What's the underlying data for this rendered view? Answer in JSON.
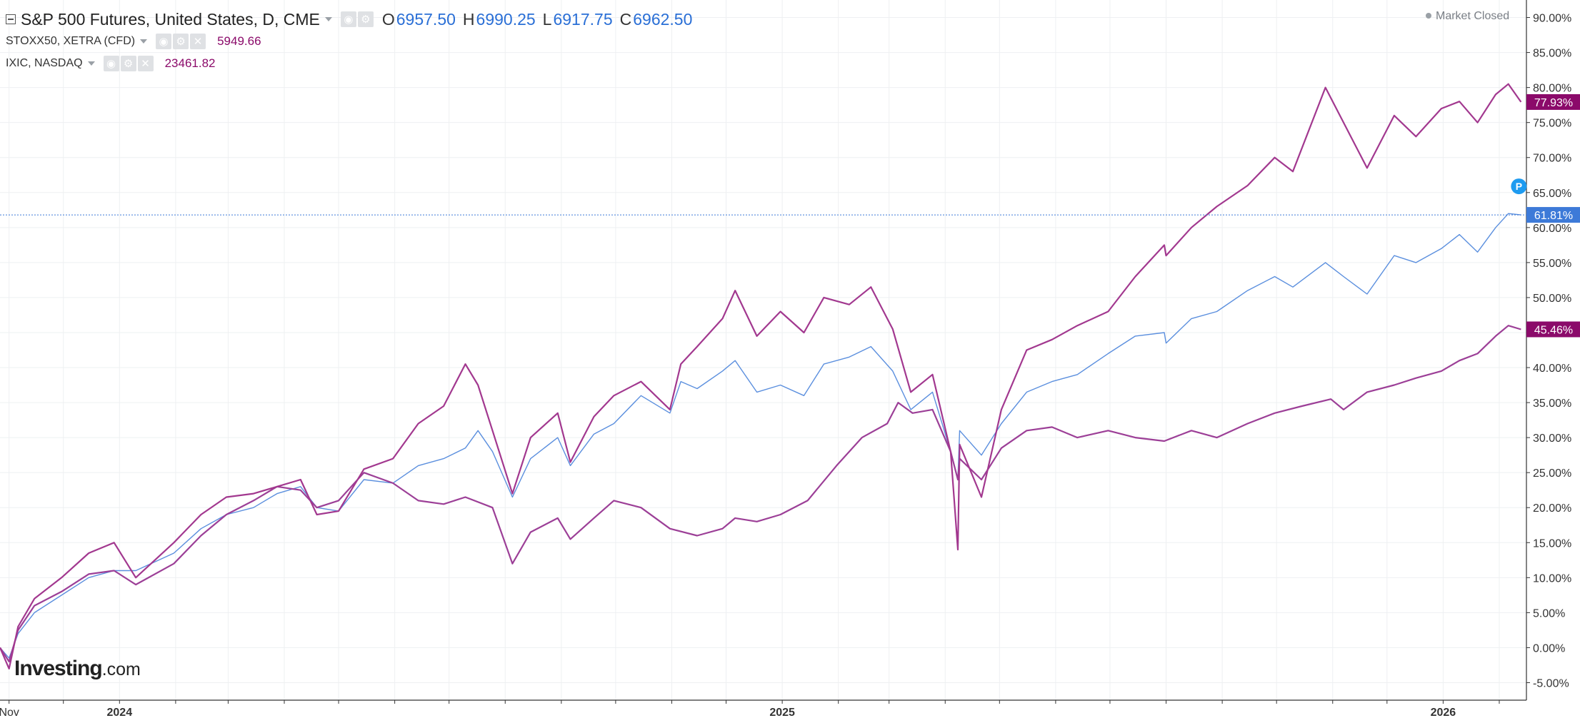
{
  "header": {
    "main_symbol": "S&P 500 Futures, United States, D, CME",
    "open_label": "O",
    "open_value": "6957.50",
    "high_label": "H",
    "high_value": "6990.25",
    "low_label": "L",
    "low_value": "6917.75",
    "close_label": "C",
    "close_value": "6962.50",
    "series2_symbol": "STOXX50, XETRA (CFD)",
    "series2_price": "5949.66",
    "series3_symbol": "IXIC, NASDAQ",
    "series3_price": "23461.82",
    "market_status": "Market Closed"
  },
  "watermark": {
    "brand": "Investing",
    "suffix": ".com"
  },
  "colors": {
    "spx": "#5b8fde",
    "stoxx": "#9c3f97",
    "ixic": "#a2388f",
    "tag_spx": "#3d7ad8",
    "tag_purple": "#8b0a6a",
    "grid": "#eef0f2",
    "axis": "#333333"
  },
  "chart_data": {
    "type": "line",
    "y_unit": "%",
    "ylim": [
      -7.5,
      92.5
    ],
    "y_ticks": [
      "90.00%",
      "85.00%",
      "80.00%",
      "75.00%",
      "70.00%",
      "65.00%",
      "60.00%",
      "55.00%",
      "50.00%",
      "45.00%",
      "40.00%",
      "35.00%",
      "30.00%",
      "25.00%",
      "20.00%",
      "15.00%",
      "10.00%",
      "5.00%",
      "0.00%",
      "-5.00%"
    ],
    "x_ticks": [
      {
        "date": "2023-11-01",
        "label": "Nov"
      },
      {
        "date": "2024-01-01",
        "label": "2024"
      },
      {
        "date": "2025-01-01",
        "label": "2025"
      },
      {
        "date": "2026-01-01",
        "label": "2026"
      }
    ],
    "x_range": [
      "2023-10-27",
      "2026-02-16"
    ],
    "grid": true,
    "last_value_tags": [
      {
        "series": "IXIC, NASDAQ",
        "label": "77.93%"
      },
      {
        "series": "S&P 500 Futures, United States, D, CME",
        "label": "61.81%"
      },
      {
        "series": "STOXX50, XETRA (CFD)",
        "label": "45.46%"
      }
    ],
    "marker": "P",
    "series": [
      {
        "name": "S&P 500 Futures, United States, D, CME",
        "points": [
          [
            "2023-10-27",
            0
          ],
          [
            "2023-11-01",
            -1.5
          ],
          [
            "2023-11-06",
            2
          ],
          [
            "2023-11-15",
            5
          ],
          [
            "2023-11-30",
            7.5
          ],
          [
            "2023-12-15",
            10
          ],
          [
            "2023-12-29",
            11
          ],
          [
            "2024-01-10",
            11
          ],
          [
            "2024-01-31",
            13.5
          ],
          [
            "2024-02-15",
            17
          ],
          [
            "2024-02-29",
            19
          ],
          [
            "2024-03-15",
            20
          ],
          [
            "2024-03-28",
            22
          ],
          [
            "2024-04-10",
            23
          ],
          [
            "2024-04-19",
            20
          ],
          [
            "2024-05-01",
            19.5
          ],
          [
            "2024-05-15",
            24
          ],
          [
            "2024-05-31",
            23.5
          ],
          [
            "2024-06-14",
            26
          ],
          [
            "2024-06-28",
            27
          ],
          [
            "2024-07-10",
            28.5
          ],
          [
            "2024-07-17",
            31
          ],
          [
            "2024-07-25",
            28
          ],
          [
            "2024-08-05",
            21.5
          ],
          [
            "2024-08-15",
            27
          ],
          [
            "2024-08-30",
            30
          ],
          [
            "2024-09-06",
            26
          ],
          [
            "2024-09-19",
            30.5
          ],
          [
            "2024-09-30",
            32
          ],
          [
            "2024-10-15",
            36
          ],
          [
            "2024-10-31",
            33.5
          ],
          [
            "2024-11-06",
            38
          ],
          [
            "2024-11-15",
            37
          ],
          [
            "2024-11-29",
            39.5
          ],
          [
            "2024-12-06",
            41
          ],
          [
            "2024-12-18",
            36.5
          ],
          [
            "2024-12-31",
            37.5
          ],
          [
            "2025-01-13",
            36
          ],
          [
            "2025-01-24",
            40.5
          ],
          [
            "2025-02-07",
            41.5
          ],
          [
            "2025-02-19",
            43
          ],
          [
            "2025-03-03",
            39.5
          ],
          [
            "2025-03-13",
            34
          ],
          [
            "2025-03-25",
            36.5
          ],
          [
            "2025-04-04",
            28
          ],
          [
            "2025-04-08",
            24
          ],
          [
            "2025-04-09",
            31
          ],
          [
            "2025-04-21",
            27.5
          ],
          [
            "2025-05-02",
            32
          ],
          [
            "2025-05-16",
            36.5
          ],
          [
            "2025-05-30",
            38
          ],
          [
            "2025-06-13",
            39
          ],
          [
            "2025-06-30",
            42
          ],
          [
            "2025-07-15",
            44.5
          ],
          [
            "2025-07-31",
            45
          ],
          [
            "2025-08-01",
            43.5
          ],
          [
            "2025-08-15",
            47
          ],
          [
            "2025-08-29",
            48
          ],
          [
            "2025-09-15",
            51
          ],
          [
            "2025-09-30",
            53
          ],
          [
            "2025-10-10",
            51.5
          ],
          [
            "2025-10-28",
            55
          ],
          [
            "2025-11-07",
            53
          ],
          [
            "2025-11-20",
            50.5
          ],
          [
            "2025-12-05",
            56
          ],
          [
            "2025-12-17",
            55
          ],
          [
            "2025-12-31",
            57
          ],
          [
            "2026-01-10",
            59
          ],
          [
            "2026-01-20",
            56.5
          ],
          [
            "2026-01-30",
            60
          ],
          [
            "2026-02-06",
            62
          ],
          [
            "2026-02-13",
            61.81
          ]
        ]
      },
      {
        "name": "STOXX50, XETRA (CFD)",
        "points": [
          [
            "2023-10-27",
            0
          ],
          [
            "2023-11-01",
            -2
          ],
          [
            "2023-11-06",
            2.5
          ],
          [
            "2023-11-15",
            6
          ],
          [
            "2023-11-30",
            8
          ],
          [
            "2023-12-15",
            10.5
          ],
          [
            "2023-12-29",
            11
          ],
          [
            "2024-01-10",
            9
          ],
          [
            "2024-01-31",
            12
          ],
          [
            "2024-02-15",
            16
          ],
          [
            "2024-02-29",
            19
          ],
          [
            "2024-03-15",
            21
          ],
          [
            "2024-03-28",
            23
          ],
          [
            "2024-04-10",
            22.5
          ],
          [
            "2024-04-19",
            20
          ],
          [
            "2024-05-01",
            21
          ],
          [
            "2024-05-15",
            25
          ],
          [
            "2024-05-31",
            23.5
          ],
          [
            "2024-06-14",
            21
          ],
          [
            "2024-06-28",
            20.5
          ],
          [
            "2024-07-10",
            21.5
          ],
          [
            "2024-07-25",
            20
          ],
          [
            "2024-08-05",
            12
          ],
          [
            "2024-08-15",
            16.5
          ],
          [
            "2024-08-30",
            18.5
          ],
          [
            "2024-09-06",
            15.5
          ],
          [
            "2024-09-19",
            18.5
          ],
          [
            "2024-09-30",
            21
          ],
          [
            "2024-10-15",
            20
          ],
          [
            "2024-10-31",
            17
          ],
          [
            "2024-11-15",
            16
          ],
          [
            "2024-11-29",
            17
          ],
          [
            "2024-12-06",
            18.5
          ],
          [
            "2024-12-18",
            18
          ],
          [
            "2024-12-31",
            19
          ],
          [
            "2025-01-15",
            21
          ],
          [
            "2025-01-31",
            26
          ],
          [
            "2025-02-14",
            30
          ],
          [
            "2025-02-28",
            32
          ],
          [
            "2025-03-06",
            35
          ],
          [
            "2025-03-14",
            33.5
          ],
          [
            "2025-03-25",
            34
          ],
          [
            "2025-04-04",
            28
          ],
          [
            "2025-04-08",
            24
          ],
          [
            "2025-04-09",
            27
          ],
          [
            "2025-04-21",
            24
          ],
          [
            "2025-05-02",
            28.5
          ],
          [
            "2025-05-16",
            31
          ],
          [
            "2025-05-30",
            31.5
          ],
          [
            "2025-06-13",
            30
          ],
          [
            "2025-06-30",
            31
          ],
          [
            "2025-07-15",
            30
          ],
          [
            "2025-07-31",
            29.5
          ],
          [
            "2025-08-15",
            31
          ],
          [
            "2025-08-29",
            30
          ],
          [
            "2025-09-15",
            32
          ],
          [
            "2025-09-30",
            33.5
          ],
          [
            "2025-10-15",
            34.5
          ],
          [
            "2025-10-31",
            35.5
          ],
          [
            "2025-11-07",
            34
          ],
          [
            "2025-11-20",
            36.5
          ],
          [
            "2025-12-05",
            37.5
          ],
          [
            "2025-12-17",
            38.5
          ],
          [
            "2025-12-31",
            39.5
          ],
          [
            "2026-01-10",
            41
          ],
          [
            "2026-01-20",
            42
          ],
          [
            "2026-01-30",
            44.5
          ],
          [
            "2026-02-06",
            46
          ],
          [
            "2026-02-13",
            45.46
          ]
        ]
      },
      {
        "name": "IXIC, NASDAQ",
        "points": [
          [
            "2023-10-27",
            0
          ],
          [
            "2023-11-01",
            -3
          ],
          [
            "2023-11-06",
            3
          ],
          [
            "2023-11-15",
            7
          ],
          [
            "2023-11-30",
            10
          ],
          [
            "2023-12-15",
            13.5
          ],
          [
            "2023-12-29",
            15
          ],
          [
            "2024-01-10",
            10
          ],
          [
            "2024-01-31",
            15
          ],
          [
            "2024-02-15",
            19
          ],
          [
            "2024-02-29",
            21.5
          ],
          [
            "2024-03-15",
            22
          ],
          [
            "2024-03-28",
            23
          ],
          [
            "2024-04-10",
            24
          ],
          [
            "2024-04-19",
            19
          ],
          [
            "2024-05-01",
            19.5
          ],
          [
            "2024-05-15",
            25.5
          ],
          [
            "2024-05-31",
            27
          ],
          [
            "2024-06-14",
            32
          ],
          [
            "2024-06-28",
            34.5
          ],
          [
            "2024-07-10",
            40.5
          ],
          [
            "2024-07-17",
            37.5
          ],
          [
            "2024-07-25",
            31
          ],
          [
            "2024-08-05",
            22
          ],
          [
            "2024-08-15",
            30
          ],
          [
            "2024-08-30",
            33.5
          ],
          [
            "2024-09-06",
            26.5
          ],
          [
            "2024-09-19",
            33
          ],
          [
            "2024-09-30",
            36
          ],
          [
            "2024-10-15",
            38
          ],
          [
            "2024-10-31",
            34
          ],
          [
            "2024-11-06",
            40.5
          ],
          [
            "2024-11-15",
            43
          ],
          [
            "2024-11-29",
            47
          ],
          [
            "2024-12-06",
            51
          ],
          [
            "2024-12-18",
            44.5
          ],
          [
            "2024-12-31",
            48
          ],
          [
            "2025-01-13",
            45
          ],
          [
            "2025-01-24",
            50
          ],
          [
            "2025-02-07",
            49
          ],
          [
            "2025-02-19",
            51.5
          ],
          [
            "2025-03-03",
            45.5
          ],
          [
            "2025-03-13",
            36.5
          ],
          [
            "2025-03-25",
            39
          ],
          [
            "2025-04-04",
            28
          ],
          [
            "2025-04-08",
            14
          ],
          [
            "2025-04-09",
            29
          ],
          [
            "2025-04-21",
            21.5
          ],
          [
            "2025-05-02",
            34
          ],
          [
            "2025-05-16",
            42.5
          ],
          [
            "2025-05-30",
            44
          ],
          [
            "2025-06-13",
            46
          ],
          [
            "2025-06-30",
            48
          ],
          [
            "2025-07-15",
            53
          ],
          [
            "2025-07-31",
            57.5
          ],
          [
            "2025-08-01",
            56
          ],
          [
            "2025-08-15",
            60
          ],
          [
            "2025-08-29",
            63
          ],
          [
            "2025-09-15",
            66
          ],
          [
            "2025-09-30",
            70
          ],
          [
            "2025-10-10",
            68
          ],
          [
            "2025-10-28",
            80
          ],
          [
            "2025-11-07",
            75
          ],
          [
            "2025-11-20",
            68.5
          ],
          [
            "2025-12-05",
            76
          ],
          [
            "2025-12-17",
            73
          ],
          [
            "2025-12-31",
            77
          ],
          [
            "2026-01-10",
            78
          ],
          [
            "2026-01-20",
            75
          ],
          [
            "2026-01-30",
            79
          ],
          [
            "2026-02-06",
            80.5
          ],
          [
            "2026-02-13",
            77.93
          ]
        ]
      }
    ]
  }
}
